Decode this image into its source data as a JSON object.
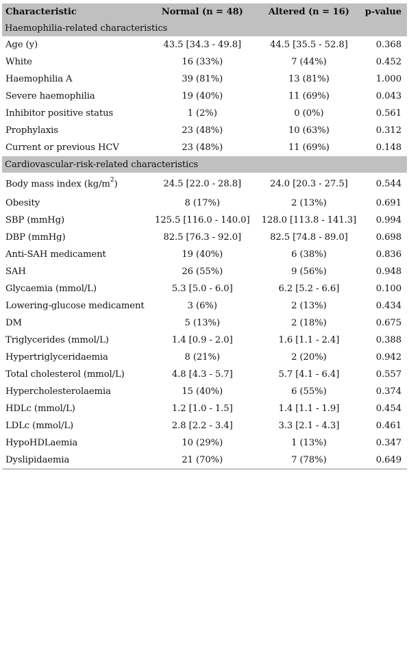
{
  "table": {
    "headers": {
      "characteristic": "Characteristic",
      "normal": "Normal (n = 48)",
      "altered": "Altered (n = 16)",
      "pvalue": "p-value"
    },
    "sections": [
      {
        "title": "Haemophilia-related characteristics",
        "rows": [
          {
            "label": "Age (y)",
            "normal": "43.5 [34.3 - 49.8]",
            "altered": "44.5 [35.5 - 52.8]",
            "p": "0.368"
          },
          {
            "label": "White",
            "normal": "16 (33%)",
            "altered": "7 (44%)",
            "p": "0.452"
          },
          {
            "label": "Haemophilia A",
            "normal": "39 (81%)",
            "altered": "13 (81%)",
            "p": "1.000"
          },
          {
            "label": "Severe haemophilia",
            "normal": "19 (40%)",
            "altered": "11 (69%)",
            "p": "0.043"
          },
          {
            "label": "Inhibitor positive status",
            "normal": "1 (2%)",
            "altered": "0 (0%)",
            "p": "0.561"
          },
          {
            "label": "Prophylaxis",
            "normal": "23 (48%)",
            "altered": "10 (63%)",
            "p": "0.312"
          },
          {
            "label": "Current or previous HCV",
            "normal": "23 (48%)",
            "altered": "11 (69%)",
            "p": "0.148"
          }
        ]
      },
      {
        "title": "Cardiovascular-risk-related characteristics",
        "rows": [
          {
            "label": "Body mass index (kg/m",
            "sup": "2",
            "label_end": ")",
            "normal": "24.5 [22.0 - 28.8]",
            "altered": "24.0 [20.3 - 27.5]",
            "p": "0.544"
          },
          {
            "label": "Obesity",
            "normal": "8 (17%)",
            "altered": "2 (13%)",
            "p": "0.691"
          },
          {
            "label": "SBP (mmHg)",
            "normal": "125.5 [116.0 - 140.0]",
            "altered": "128.0 [113.8 - 141.3]",
            "p": "0.994"
          },
          {
            "label": "DBP (mmHg)",
            "normal": "82.5 [76.3 - 92.0]",
            "altered": "82.5 [74.8 - 89.0]",
            "p": "0.698"
          },
          {
            "label": "Anti-SAH medicament",
            "normal": "19 (40%)",
            "altered": "6 (38%)",
            "p": "0.836"
          },
          {
            "label": "SAH",
            "normal": "26 (55%)",
            "altered": "9 (56%)",
            "p": "0.948"
          },
          {
            "label": "Glycaemia (mmol/L)",
            "normal": "5.3 [5.0 - 6.0]",
            "altered": "6.2 [5.2 - 6.6]",
            "p": "0.100"
          },
          {
            "label": "Lowering-glucose medicament",
            "normal": "3 (6%)",
            "altered": "2 (13%)",
            "p": "0.434"
          },
          {
            "label": "DM",
            "normal": "5 (13%)",
            "altered": "2 (18%)",
            "p": "0.675"
          },
          {
            "label": "Triglycerides (mmol/L)",
            "normal": "1.4 [0.9 - 2.0]",
            "altered": "1.6 [1.1 - 2.4]",
            "p": "0.388"
          },
          {
            "label": "Hypertriglyceridaemia",
            "normal": "8 (21%)",
            "altered": "2 (20%)",
            "p": "0.942"
          },
          {
            "label": "Total cholesterol (mmol/L)",
            "normal": "4.8 [4.3 - 5.7]",
            "altered": "5.7 [4.1 - 6.4]",
            "p": "0.557"
          },
          {
            "label": "Hypercholesterolaemia",
            "normal": "15 (40%)",
            "altered": "6 (55%)",
            "p": "0.374"
          },
          {
            "label": "HDLc (mmol/L)",
            "normal": "1.2 [1.0 - 1.5]",
            "altered": "1.4 [1.1 - 1.9]",
            "p": "0.454"
          },
          {
            "label": "LDLc (mmol/L)",
            "normal": "2.8 [2.2 - 3.4]",
            "altered": "3.3 [2.1 - 4.3]",
            "p": "0.461"
          },
          {
            "label": "HypoHDLaemia",
            "normal": "10 (29%)",
            "altered": "1 (13%)",
            "p": "0.347"
          },
          {
            "label": "Dyslipidaemia",
            "normal": "21 (70%)",
            "altered": "7 (78%)",
            "p": "0.649"
          }
        ]
      }
    ],
    "colors": {
      "header_bg": "#c0c0c0",
      "text": "#111111",
      "rule": "#888888"
    }
  }
}
